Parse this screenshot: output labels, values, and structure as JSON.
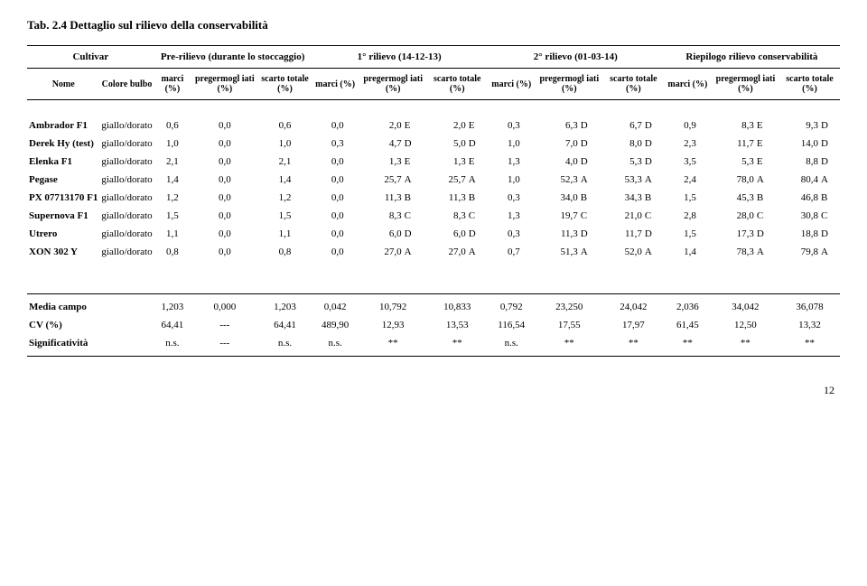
{
  "title": "Tab. 2.4    Dettaglio sul rilievo della conservabilità",
  "header1": {
    "cultivar": "Cultivar",
    "pre": "Pre-rilievo (durante lo stoccaggio)",
    "r1": "1° rilievo (14-12-13)",
    "r2": "2° rilievo (01-03-14)",
    "riep": "Riepilogo rilievo conservabilità"
  },
  "header2": {
    "nome": "Nome",
    "colore": "Colore bulbo",
    "marci": "marci (%)",
    "preg": "pregermogl\niati (%)",
    "scarto": "scarto\ntotale (%)"
  },
  "rows": [
    {
      "name": "Ambrador F1",
      "color": "giallo/dorato",
      "pre": [
        "0,6",
        "0,0",
        "0,6"
      ],
      "r1": [
        [
          "0,0",
          ""
        ],
        [
          "2,0",
          "E"
        ],
        [
          "2,0",
          "E"
        ]
      ],
      "r2": [
        [
          "0,3",
          ""
        ],
        [
          "6,3",
          "D"
        ],
        [
          "6,7",
          "D"
        ]
      ],
      "riep": [
        [
          "0,9",
          ""
        ],
        [
          "8,3",
          "E"
        ],
        [
          "9,3",
          "D"
        ]
      ]
    },
    {
      "name": "Derek Hy (test)",
      "color": "giallo/dorato",
      "pre": [
        "1,0",
        "0,0",
        "1,0"
      ],
      "r1": [
        [
          "0,3",
          ""
        ],
        [
          "4,7",
          "D"
        ],
        [
          "5,0",
          "D"
        ]
      ],
      "r2": [
        [
          "1,0",
          ""
        ],
        [
          "7,0",
          "D"
        ],
        [
          "8,0",
          "D"
        ]
      ],
      "riep": [
        [
          "2,3",
          ""
        ],
        [
          "11,7",
          "E"
        ],
        [
          "14,0",
          "D"
        ]
      ]
    },
    {
      "name": "Elenka F1",
      "color": "giallo/dorato",
      "pre": [
        "2,1",
        "0,0",
        "2,1"
      ],
      "r1": [
        [
          "0,0",
          ""
        ],
        [
          "1,3",
          "E"
        ],
        [
          "1,3",
          "E"
        ]
      ],
      "r2": [
        [
          "1,3",
          ""
        ],
        [
          "4,0",
          "D"
        ],
        [
          "5,3",
          "D"
        ]
      ],
      "riep": [
        [
          "3,5",
          ""
        ],
        [
          "5,3",
          "E"
        ],
        [
          "8,8",
          "D"
        ]
      ]
    },
    {
      "name": "Pegase",
      "color": "giallo/dorato",
      "pre": [
        "1,4",
        "0,0",
        "1,4"
      ],
      "r1": [
        [
          "0,0",
          ""
        ],
        [
          "25,7",
          "A"
        ],
        [
          "25,7",
          "A"
        ]
      ],
      "r2": [
        [
          "1,0",
          ""
        ],
        [
          "52,3",
          "A"
        ],
        [
          "53,3",
          "A"
        ]
      ],
      "riep": [
        [
          "2,4",
          ""
        ],
        [
          "78,0",
          "A"
        ],
        [
          "80,4",
          "A"
        ]
      ]
    },
    {
      "name": "PX 07713170 F1",
      "color": "giallo/dorato",
      "pre": [
        "1,2",
        "0,0",
        "1,2"
      ],
      "r1": [
        [
          "0,0",
          ""
        ],
        [
          "11,3",
          "B"
        ],
        [
          "11,3",
          "B"
        ]
      ],
      "r2": [
        [
          "0,3",
          ""
        ],
        [
          "34,0",
          "B"
        ],
        [
          "34,3",
          "B"
        ]
      ],
      "riep": [
        [
          "1,5",
          ""
        ],
        [
          "45,3",
          "B"
        ],
        [
          "46,8",
          "B"
        ]
      ]
    },
    {
      "name": "Supernova F1",
      "color": "giallo/dorato",
      "pre": [
        "1,5",
        "0,0",
        "1,5"
      ],
      "r1": [
        [
          "0,0",
          ""
        ],
        [
          "8,3",
          "C"
        ],
        [
          "8,3",
          "C"
        ]
      ],
      "r2": [
        [
          "1,3",
          ""
        ],
        [
          "19,7",
          "C"
        ],
        [
          "21,0",
          "C"
        ]
      ],
      "riep": [
        [
          "2,8",
          ""
        ],
        [
          "28,0",
          "C"
        ],
        [
          "30,8",
          "C"
        ]
      ]
    },
    {
      "name": "Utrero",
      "color": "giallo/dorato",
      "pre": [
        "1,1",
        "0,0",
        "1,1"
      ],
      "r1": [
        [
          "0,0",
          ""
        ],
        [
          "6,0",
          "D"
        ],
        [
          "6,0",
          "D"
        ]
      ],
      "r2": [
        [
          "0,3",
          ""
        ],
        [
          "11,3",
          "D"
        ],
        [
          "11,7",
          "D"
        ]
      ],
      "riep": [
        [
          "1,5",
          ""
        ],
        [
          "17,3",
          "D"
        ],
        [
          "18,8",
          "D"
        ]
      ]
    },
    {
      "name": "XON 302 Y",
      "color": "giallo/dorato",
      "pre": [
        "0,8",
        "0,0",
        "0,8"
      ],
      "r1": [
        [
          "0,0",
          ""
        ],
        [
          "27,0",
          "A"
        ],
        [
          "27,0",
          "A"
        ]
      ],
      "r2": [
        [
          "0,7",
          ""
        ],
        [
          "51,3",
          "A"
        ],
        [
          "52,0",
          "A"
        ]
      ],
      "riep": [
        [
          "1,4",
          ""
        ],
        [
          "78,3",
          "A"
        ],
        [
          "79,8",
          "A"
        ]
      ]
    }
  ],
  "summary": [
    {
      "label": "Media campo",
      "vals": [
        "1,203",
        "0,000",
        "1,203",
        "0,042",
        "10,792",
        "10,833",
        "0,792",
        "23,250",
        "24,042",
        "2,036",
        "34,042",
        "36,078"
      ]
    },
    {
      "label": "CV (%)",
      "vals": [
        "64,41",
        "---",
        "64,41",
        "489,90",
        "12,93",
        "13,53",
        "116,54",
        "17,55",
        "17,97",
        "61,45",
        "12,50",
        "13,32"
      ]
    },
    {
      "label": "Significatività",
      "vals": [
        "n.s.",
        "---",
        "n.s.",
        "n.s.",
        "**",
        "**",
        "n.s.",
        "**",
        "**",
        "**",
        "**",
        "**"
      ]
    }
  ],
  "page": "12"
}
